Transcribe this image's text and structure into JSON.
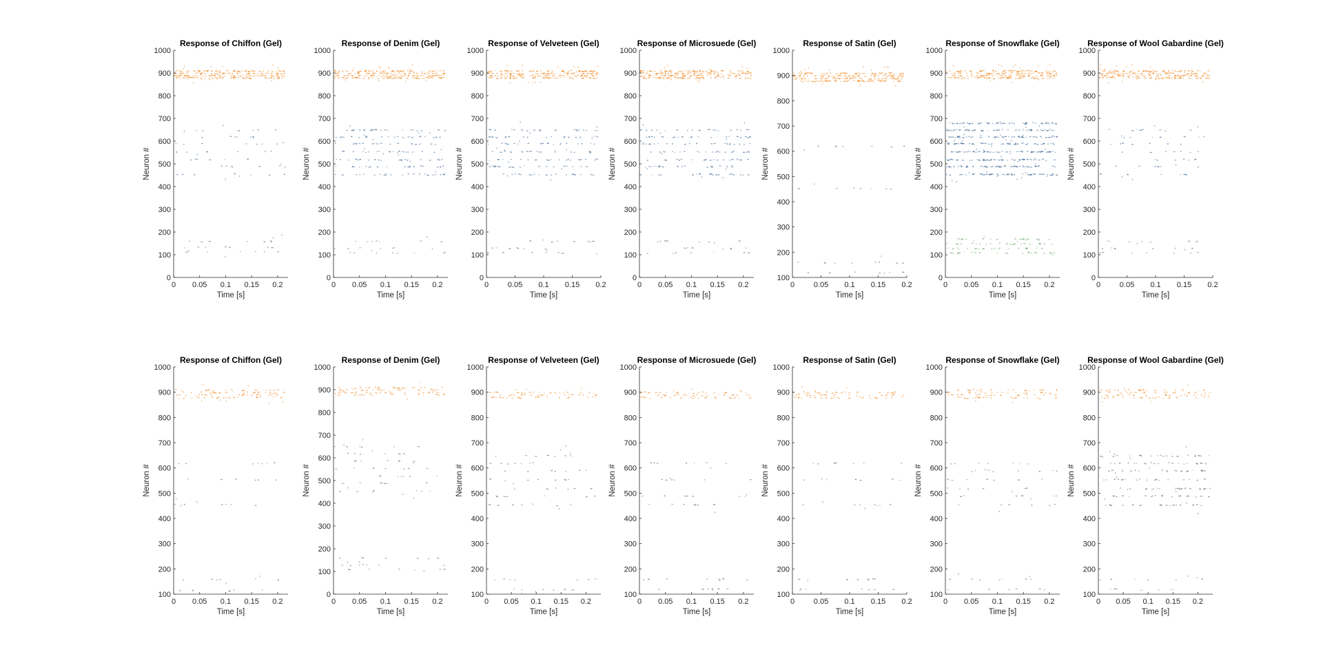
{
  "colors": {
    "orange": "#f28e2b",
    "blue": "#4a6f9a",
    "green": "#6fa86a",
    "gray": "#6f6f6f",
    "axis": "#262626"
  },
  "chart_data": [
    {
      "type": "scatter",
      "subtype": "raster",
      "title": "Response of Chiffon (Gel)",
      "xlabel": "Time [s]",
      "ylabel": "Neuron #",
      "xlim": [
        0,
        0.22
      ],
      "ylim": [
        0,
        1000
      ],
      "xticks": [
        "0",
        "0.05",
        "0.1",
        "0.15",
        "0.2"
      ],
      "yticks": [
        "0",
        "100",
        "200",
        "300",
        "400",
        "500",
        "600",
        "700",
        "800",
        "900",
        "1000"
      ],
      "bands": [
        {
          "neuron_range": [
            860,
            940
          ],
          "rows": [
            880,
            890,
            900,
            910
          ],
          "color": "orange",
          "density": "dense"
        },
        {
          "neuron_range": [
            420,
            690
          ],
          "rows": [
            455,
            490,
            520,
            555,
            590,
            620,
            650
          ],
          "color": "blue",
          "density": "sparse"
        },
        {
          "neuron_range": [
            90,
            190
          ],
          "rows": [
            115,
            135,
            160
          ],
          "color": "gray",
          "density": "sparse"
        }
      ]
    },
    {
      "type": "scatter",
      "subtype": "raster",
      "title": "Response of Denim (Gel)",
      "xlabel": "Time [s]",
      "ylabel": "Neuron #",
      "xlim": [
        0,
        0.22
      ],
      "ylim": [
        0,
        1000
      ],
      "xticks": [
        "0",
        "0.05",
        "0.1",
        "0.15",
        "0.2"
      ],
      "yticks": [
        "0",
        "100",
        "200",
        "300",
        "400",
        "500",
        "600",
        "700",
        "800",
        "900",
        "1000"
      ],
      "bands": [
        {
          "neuron_range": [
            860,
            940
          ],
          "rows": [
            880,
            890,
            900,
            910
          ],
          "color": "orange",
          "density": "dense"
        },
        {
          "neuron_range": [
            420,
            690
          ],
          "rows": [
            455,
            490,
            520,
            555,
            590,
            620,
            650
          ],
          "color": "blue",
          "density": "medium"
        },
        {
          "neuron_range": [
            90,
            190
          ],
          "rows": [
            110,
            130,
            160
          ],
          "color": "gray",
          "density": "sparse"
        }
      ]
    },
    {
      "type": "scatter",
      "subtype": "raster",
      "title": "Response of Velveteen (Gel)",
      "xlabel": "Time [s]",
      "ylabel": "Neuron #",
      "xlim": [
        0,
        0.2
      ],
      "ylim": [
        0,
        1000
      ],
      "xticks": [
        "0",
        "0.05",
        "0.1",
        "0.15",
        "0.2"
      ],
      "yticks": [
        "0",
        "100",
        "200",
        "300",
        "400",
        "500",
        "600",
        "700",
        "800",
        "900",
        "1000"
      ],
      "bands": [
        {
          "neuron_range": [
            860,
            940
          ],
          "rows": [
            880,
            890,
            900,
            910
          ],
          "color": "orange",
          "density": "dense"
        },
        {
          "neuron_range": [
            420,
            690
          ],
          "rows": [
            455,
            490,
            520,
            555,
            590,
            620,
            650
          ],
          "color": "blue",
          "density": "medium"
        },
        {
          "neuron_range": [
            90,
            190
          ],
          "rows": [
            110,
            130,
            160
          ],
          "color": "gray",
          "density": "sparse"
        }
      ]
    },
    {
      "type": "scatter",
      "subtype": "raster",
      "title": "Response of Microsuede (Gel)",
      "xlabel": "Time [s]",
      "ylabel": "Neuron #",
      "xlim": [
        0,
        0.22
      ],
      "ylim": [
        0,
        1000
      ],
      "xticks": [
        "0",
        "0.05",
        "0.1",
        "0.15",
        "0.2"
      ],
      "yticks": [
        "0",
        "100",
        "200",
        "300",
        "400",
        "500",
        "600",
        "700",
        "800",
        "900",
        "1000"
      ],
      "bands": [
        {
          "neuron_range": [
            860,
            940
          ],
          "rows": [
            880,
            890,
            900,
            910
          ],
          "color": "orange",
          "density": "dense"
        },
        {
          "neuron_range": [
            420,
            690
          ],
          "rows": [
            455,
            490,
            520,
            555,
            590,
            620,
            650
          ],
          "color": "blue",
          "density": "medium"
        },
        {
          "neuron_range": [
            90,
            190
          ],
          "rows": [
            110,
            130,
            160
          ],
          "color": "gray",
          "density": "sparse"
        }
      ]
    },
    {
      "type": "scatter",
      "subtype": "raster",
      "title": "Response of Satin (Gel)",
      "xlabel": "Time [s]",
      "ylabel": "Neuron #",
      "xlim": [
        0,
        0.2
      ],
      "ylim": [
        100,
        1000
      ],
      "xticks": [
        "0",
        "0.05",
        "0.1",
        "0.15",
        "0.2"
      ],
      "yticks": [
        "100",
        "200",
        "300",
        "400",
        "500",
        "600",
        "700",
        "800",
        "900",
        "1000"
      ],
      "bands": [
        {
          "neuron_range": [
            860,
            940
          ],
          "rows": [
            880,
            890,
            900,
            910
          ],
          "color": "orange",
          "density": "dense"
        },
        {
          "neuron_range": [
            420,
            690
          ],
          "rows": [
            455,
            620
          ],
          "color": "gray",
          "density": "sparse"
        },
        {
          "neuron_range": [
            100,
            190
          ],
          "rows": [
            120,
            160
          ],
          "color": "gray",
          "density": "sparse"
        }
      ]
    },
    {
      "type": "scatter",
      "subtype": "raster",
      "title": "Response of Snowflake (Gel)",
      "xlabel": "Time [s]",
      "ylabel": "Neuron #",
      "xlim": [
        0,
        0.22
      ],
      "ylim": [
        0,
        1000
      ],
      "xticks": [
        "0",
        "0.05",
        "0.1",
        "0.15",
        "0.2"
      ],
      "yticks": [
        "0",
        "100",
        "200",
        "300",
        "400",
        "500",
        "600",
        "700",
        "800",
        "900",
        "1000"
      ],
      "bands": [
        {
          "neuron_range": [
            860,
            940
          ],
          "rows": [
            880,
            890,
            900,
            910
          ],
          "color": "orange",
          "density": "dense"
        },
        {
          "neuron_range": [
            420,
            690
          ],
          "rows": [
            455,
            490,
            520,
            555,
            590,
            620,
            650,
            680
          ],
          "color": "blue",
          "density": "dense"
        },
        {
          "neuron_range": [
            90,
            190
          ],
          "rows": [
            110,
            130,
            150,
            170
          ],
          "color": "green",
          "density": "medium"
        }
      ]
    },
    {
      "type": "scatter",
      "subtype": "raster",
      "title": "Response of Wool Gabardine (Gel)",
      "xlabel": "Time [s]",
      "ylabel": "Neuron #",
      "xlim": [
        0,
        0.2
      ],
      "ylim": [
        0,
        1000
      ],
      "xticks": [
        "0",
        "0.05",
        "0.1",
        "0.15",
        "0.2"
      ],
      "yticks": [
        "0",
        "100",
        "200",
        "300",
        "400",
        "500",
        "600",
        "700",
        "800",
        "900",
        "1000"
      ],
      "bands": [
        {
          "neuron_range": [
            860,
            940
          ],
          "rows": [
            880,
            890,
            900,
            910
          ],
          "color": "orange",
          "density": "dense"
        },
        {
          "neuron_range": [
            420,
            690
          ],
          "rows": [
            455,
            490,
            520,
            555,
            590,
            620,
            650
          ],
          "color": "blue",
          "density": "sparse"
        },
        {
          "neuron_range": [
            90,
            190
          ],
          "rows": [
            110,
            130,
            160
          ],
          "color": "gray",
          "density": "sparse"
        }
      ]
    },
    {
      "type": "scatter",
      "subtype": "raster",
      "title": "Response of Chiffon (Gel)",
      "xlabel": "Time [s]",
      "ylabel": "Neuron #",
      "xlim": [
        0,
        0.22
      ],
      "ylim": [
        100,
        1000
      ],
      "xticks": [
        "0",
        "0.05",
        "0.1",
        "0.15",
        "0.2"
      ],
      "yticks": [
        "100",
        "200",
        "300",
        "400",
        "500",
        "600",
        "700",
        "800",
        "900",
        "1000"
      ],
      "bands": [
        {
          "neuron_range": [
            860,
            940
          ],
          "rows": [
            880,
            890,
            900,
            910
          ],
          "color": "orange",
          "density": "medium"
        },
        {
          "neuron_range": [
            420,
            690
          ],
          "rows": [
            455,
            555,
            620
          ],
          "color": "gray",
          "density": "sparse"
        },
        {
          "neuron_range": [
            100,
            190
          ],
          "rows": [
            115,
            160
          ],
          "color": "gray",
          "density": "sparse"
        }
      ]
    },
    {
      "type": "scatter",
      "subtype": "raster",
      "title": "Response of Denim (Gel)",
      "xlabel": "Time [s]",
      "ylabel": "Neuron #",
      "xlim": [
        0,
        0.22
      ],
      "ylim": [
        0,
        1000
      ],
      "xticks": [
        "0",
        "0.05",
        "0.1",
        "0.15",
        "0.2"
      ],
      "yticks": [
        "0",
        "100",
        "200",
        "300",
        "400",
        "500",
        "600",
        "700",
        "800",
        "900",
        "1000"
      ],
      "bands": [
        {
          "neuron_range": [
            860,
            940
          ],
          "rows": [
            880,
            890,
            900,
            910
          ],
          "color": "orange",
          "density": "medium"
        },
        {
          "neuron_range": [
            420,
            690
          ],
          "rows": [
            455,
            490,
            520,
            555,
            590,
            620,
            650
          ],
          "color": "gray",
          "density": "sparse"
        },
        {
          "neuron_range": [
            90,
            190
          ],
          "rows": [
            110,
            130,
            160
          ],
          "color": "gray",
          "density": "sparse"
        }
      ]
    },
    {
      "type": "scatter",
      "subtype": "raster",
      "title": "Response of Velveteen (Gel)",
      "xlabel": "Time [s]",
      "ylabel": "Neuron #",
      "xlim": [
        0,
        0.23
      ],
      "ylim": [
        100,
        1000
      ],
      "xticks": [
        "0",
        "0.05",
        "0.1",
        "0.15",
        "0.2"
      ],
      "yticks": [
        "100",
        "200",
        "300",
        "400",
        "500",
        "600",
        "700",
        "800",
        "900",
        "1000"
      ],
      "bands": [
        {
          "neuron_range": [
            860,
            940
          ],
          "rows": [
            880,
            890,
            900
          ],
          "color": "orange",
          "density": "medium"
        },
        {
          "neuron_range": [
            420,
            690
          ],
          "rows": [
            455,
            490,
            520,
            555,
            590,
            620,
            650
          ],
          "color": "gray",
          "density": "sparse"
        },
        {
          "neuron_range": [
            100,
            190
          ],
          "rows": [
            120,
            160
          ],
          "color": "gray",
          "density": "sparse"
        }
      ]
    },
    {
      "type": "scatter",
      "subtype": "raster",
      "title": "Response of Microsuede (Gel)",
      "xlabel": "Time [s]",
      "ylabel": "Neuron #",
      "xlim": [
        0,
        0.22
      ],
      "ylim": [
        100,
        1000
      ],
      "xticks": [
        "0",
        "0.05",
        "0.1",
        "0.15",
        "0.2"
      ],
      "yticks": [
        "100",
        "200",
        "300",
        "400",
        "500",
        "600",
        "700",
        "800",
        "900",
        "1000"
      ],
      "bands": [
        {
          "neuron_range": [
            860,
            940
          ],
          "rows": [
            880,
            890,
            900
          ],
          "color": "orange",
          "density": "medium"
        },
        {
          "neuron_range": [
            420,
            690
          ],
          "rows": [
            455,
            490,
            555,
            620
          ],
          "color": "gray",
          "density": "sparse"
        },
        {
          "neuron_range": [
            100,
            190
          ],
          "rows": [
            120,
            160
          ],
          "color": "gray",
          "density": "sparse"
        }
      ]
    },
    {
      "type": "scatter",
      "subtype": "raster",
      "title": "Response of Satin (Gel)",
      "xlabel": "Time [s]",
      "ylabel": "Neuron #",
      "xlim": [
        0,
        0.2
      ],
      "ylim": [
        100,
        1000
      ],
      "xticks": [
        "0",
        "0.05",
        "0.1",
        "0.15",
        "0.2"
      ],
      "yticks": [
        "100",
        "200",
        "300",
        "400",
        "500",
        "600",
        "700",
        "800",
        "900",
        "1000"
      ],
      "bands": [
        {
          "neuron_range": [
            860,
            940
          ],
          "rows": [
            880,
            890,
            900
          ],
          "color": "orange",
          "density": "medium"
        },
        {
          "neuron_range": [
            420,
            690
          ],
          "rows": [
            455,
            555,
            620
          ],
          "color": "gray",
          "density": "sparse"
        },
        {
          "neuron_range": [
            100,
            190
          ],
          "rows": [
            120,
            160
          ],
          "color": "gray",
          "density": "sparse"
        }
      ]
    },
    {
      "type": "scatter",
      "subtype": "raster",
      "title": "Response of Snowflake (Gel)",
      "xlabel": "Time [s]",
      "ylabel": "Neuron #",
      "xlim": [
        0,
        0.22
      ],
      "ylim": [
        100,
        1000
      ],
      "xticks": [
        "0",
        "0.05",
        "0.1",
        "0.15",
        "0.2"
      ],
      "yticks": [
        "100",
        "200",
        "300",
        "400",
        "500",
        "600",
        "700",
        "800",
        "900",
        "1000"
      ],
      "bands": [
        {
          "neuron_range": [
            860,
            940
          ],
          "rows": [
            880,
            890,
            900,
            910
          ],
          "color": "orange",
          "density": "medium"
        },
        {
          "neuron_range": [
            420,
            690
          ],
          "rows": [
            455,
            490,
            520,
            555,
            590,
            620
          ],
          "color": "gray",
          "density": "sparse"
        },
        {
          "neuron_range": [
            100,
            190
          ],
          "rows": [
            120,
            160
          ],
          "color": "gray",
          "density": "sparse"
        }
      ]
    },
    {
      "type": "scatter",
      "subtype": "raster",
      "title": "Response of Wool Gabardine (Gel)",
      "xlabel": "Time [s]",
      "ylabel": "Neuron #",
      "xlim": [
        0,
        0.23
      ],
      "ylim": [
        100,
        1000
      ],
      "xticks": [
        "0",
        "0.05",
        "0.1",
        "0.15",
        "0.2"
      ],
      "yticks": [
        "100",
        "200",
        "300",
        "400",
        "500",
        "600",
        "700",
        "800",
        "900",
        "1000"
      ],
      "bands": [
        {
          "neuron_range": [
            860,
            940
          ],
          "rows": [
            880,
            890,
            900,
            910
          ],
          "color": "orange",
          "density": "medium"
        },
        {
          "neuron_range": [
            420,
            690
          ],
          "rows": [
            455,
            490,
            520,
            555,
            590,
            620,
            650
          ],
          "color": "gray",
          "density": "medium"
        },
        {
          "neuron_range": [
            100,
            190
          ],
          "rows": [
            120,
            160
          ],
          "color": "gray",
          "density": "sparse"
        }
      ]
    }
  ]
}
